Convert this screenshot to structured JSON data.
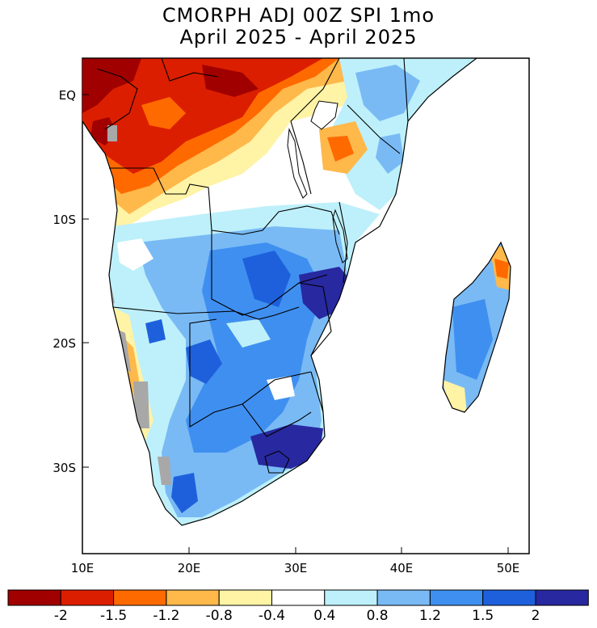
{
  "title": {
    "line1": "CMORPH ADJ 00Z SPI 1mo",
    "line2": "April 2025 - April 2025"
  },
  "axes": {
    "lat_labels": [
      "EQ",
      "10S",
      "20S",
      "30S"
    ],
    "lon_labels": [
      "10E",
      "20E",
      "30E",
      "40E",
      "50E"
    ]
  },
  "legend": {
    "labels": [
      "-2",
      "-1.5",
      "-1.2",
      "-0.8",
      "-0.4",
      "0.4",
      "0.8",
      "1.2",
      "1.5",
      "2"
    ],
    "colors": [
      "#a00000",
      "#dc1e00",
      "#ff6a00",
      "#ffb84a",
      "#fff3a6",
      "#ffffff",
      "#bdf0fa",
      "#79baf5",
      "#3f8ff0",
      "#1e60dc",
      "#2828a0"
    ]
  },
  "colors": {
    "no_data": "#a8a8a8",
    "coastline": "#000000"
  }
}
